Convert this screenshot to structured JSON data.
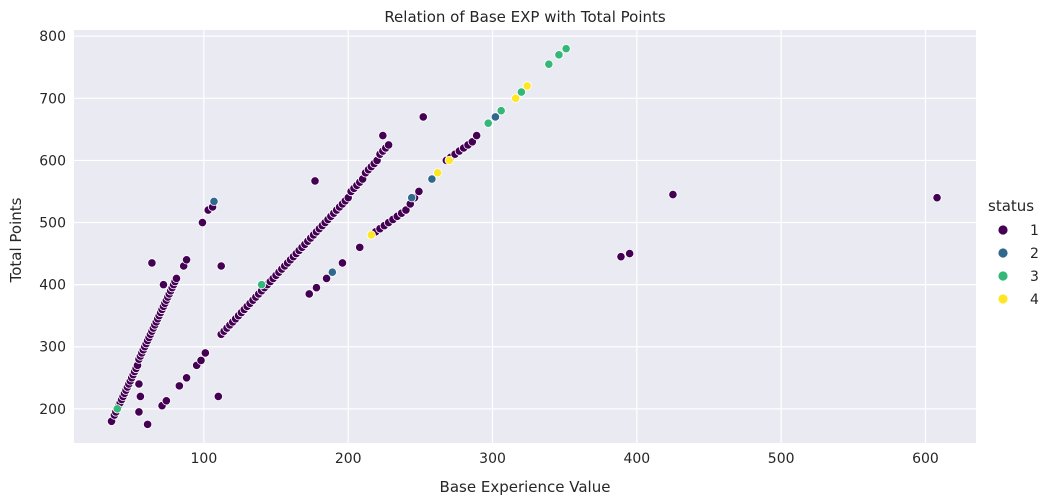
{
  "chart_data": {
    "type": "scatter",
    "title": "Relation of Base EXP with Total Points",
    "xlabel": "Base Experience Value",
    "ylabel": "Total Points",
    "xlim": [
      10,
      635
    ],
    "ylim": [
      145,
      810
    ],
    "x_ticks": [
      100,
      200,
      300,
      400,
      500,
      600
    ],
    "y_ticks": [
      200,
      300,
      400,
      500,
      600,
      700,
      800
    ],
    "grid": true,
    "legend": {
      "title": "status",
      "placement": "right"
    },
    "series": [
      {
        "name": "1",
        "color": "#440154",
        "points": [
          [
            36,
            180
          ],
          [
            38,
            190
          ],
          [
            39,
            195
          ],
          [
            41,
            205
          ],
          [
            42,
            210
          ],
          [
            43,
            215
          ],
          [
            44,
            220
          ],
          [
            45,
            225
          ],
          [
            46,
            230
          ],
          [
            47,
            235
          ],
          [
            48,
            240
          ],
          [
            49,
            245
          ],
          [
            50,
            250
          ],
          [
            51,
            255
          ],
          [
            52,
            260
          ],
          [
            53,
            265
          ],
          [
            54,
            270
          ],
          [
            55,
            280
          ],
          [
            56,
            285
          ],
          [
            57,
            290
          ],
          [
            58,
            295
          ],
          [
            59,
            300
          ],
          [
            60,
            305
          ],
          [
            61,
            310
          ],
          [
            62,
            315
          ],
          [
            63,
            320
          ],
          [
            64,
            325
          ],
          [
            65,
            330
          ],
          [
            66,
            335
          ],
          [
            67,
            340
          ],
          [
            68,
            345
          ],
          [
            69,
            350
          ],
          [
            70,
            355
          ],
          [
            71,
            360
          ],
          [
            72,
            365
          ],
          [
            73,
            370
          ],
          [
            74,
            375
          ],
          [
            75,
            380
          ],
          [
            76,
            385
          ],
          [
            77,
            390
          ],
          [
            78,
            395
          ],
          [
            79,
            400
          ],
          [
            80,
            405
          ],
          [
            81,
            410
          ],
          [
            64,
            435
          ],
          [
            86,
            430
          ],
          [
            88,
            440
          ],
          [
            72,
            400
          ],
          [
            55,
            240
          ],
          [
            56,
            220
          ],
          [
            55,
            195
          ],
          [
            61,
            175
          ],
          [
            71,
            205
          ],
          [
            74,
            213
          ],
          [
            83,
            237
          ],
          [
            88,
            250
          ],
          [
            95,
            270
          ],
          [
            98,
            278
          ],
          [
            101,
            290
          ],
          [
            99,
            500
          ],
          [
            103,
            520
          ],
          [
            106,
            525
          ],
          [
            112,
            430
          ],
          [
            110,
            220
          ],
          [
            112,
            320
          ],
          [
            114,
            325
          ],
          [
            116,
            330
          ],
          [
            118,
            335
          ],
          [
            120,
            340
          ],
          [
            122,
            345
          ],
          [
            124,
            350
          ],
          [
            126,
            355
          ],
          [
            128,
            360
          ],
          [
            130,
            365
          ],
          [
            132,
            370
          ],
          [
            134,
            375
          ],
          [
            136,
            380
          ],
          [
            138,
            385
          ],
          [
            140,
            390
          ],
          [
            142,
            395
          ],
          [
            144,
            400
          ],
          [
            146,
            405
          ],
          [
            148,
            410
          ],
          [
            150,
            415
          ],
          [
            152,
            420
          ],
          [
            154,
            425
          ],
          [
            156,
            430
          ],
          [
            158,
            435
          ],
          [
            160,
            440
          ],
          [
            162,
            445
          ],
          [
            164,
            450
          ],
          [
            166,
            455
          ],
          [
            168,
            460
          ],
          [
            170,
            465
          ],
          [
            172,
            470
          ],
          [
            174,
            475
          ],
          [
            176,
            480
          ],
          [
            178,
            485
          ],
          [
            180,
            490
          ],
          [
            182,
            495
          ],
          [
            184,
            500
          ],
          [
            186,
            505
          ],
          [
            188,
            510
          ],
          [
            190,
            515
          ],
          [
            192,
            520
          ],
          [
            194,
            525
          ],
          [
            196,
            530
          ],
          [
            198,
            535
          ],
          [
            200,
            540
          ],
          [
            202,
            550
          ],
          [
            204,
            555
          ],
          [
            206,
            560
          ],
          [
            208,
            565
          ],
          [
            210,
            570
          ],
          [
            212,
            580
          ],
          [
            214,
            585
          ],
          [
            216,
            590
          ],
          [
            218,
            595
          ],
          [
            220,
            600
          ],
          [
            222,
            610
          ],
          [
            224,
            615
          ],
          [
            226,
            620
          ],
          [
            228,
            625
          ],
          [
            224,
            640
          ],
          [
            177,
            567
          ],
          [
            173,
            385
          ],
          [
            178,
            395
          ],
          [
            185,
            410
          ],
          [
            196,
            435
          ],
          [
            208,
            460
          ],
          [
            219,
            485
          ],
          [
            222,
            490
          ],
          [
            225,
            495
          ],
          [
            228,
            500
          ],
          [
            231,
            505
          ],
          [
            234,
            510
          ],
          [
            237,
            515
          ],
          [
            240,
            520
          ],
          [
            243,
            530
          ],
          [
            246,
            540
          ],
          [
            249,
            550
          ],
          [
            252,
            670
          ],
          [
            268,
            600
          ],
          [
            271,
            605
          ],
          [
            274,
            610
          ],
          [
            277,
            615
          ],
          [
            280,
            620
          ],
          [
            283,
            625
          ],
          [
            286,
            630
          ],
          [
            289,
            640
          ],
          [
            389,
            445
          ],
          [
            395,
            450
          ],
          [
            425,
            545
          ],
          [
            608,
            540
          ]
        ]
      },
      {
        "name": "2",
        "color": "#31688e",
        "points": [
          [
            107,
            534
          ],
          [
            189,
            420
          ],
          [
            258,
            570
          ],
          [
            244,
            540
          ],
          [
            302,
            670
          ]
        ]
      },
      {
        "name": "3",
        "color": "#35b779",
        "points": [
          [
            40,
            200
          ],
          [
            140,
            400
          ],
          [
            297,
            660
          ],
          [
            306,
            680
          ],
          [
            320,
            710
          ],
          [
            339,
            755
          ],
          [
            346,
            770
          ],
          [
            351,
            780
          ]
        ]
      },
      {
        "name": "4",
        "color": "#fde725",
        "points": [
          [
            216,
            480
          ],
          [
            262,
            580
          ],
          [
            270,
            600
          ],
          [
            316,
            700
          ],
          [
            324,
            720
          ]
        ]
      }
    ]
  }
}
